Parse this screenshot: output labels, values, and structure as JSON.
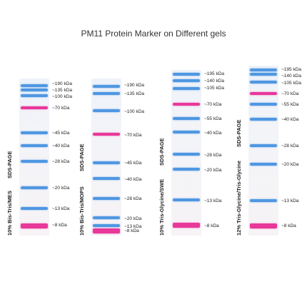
{
  "title": "PM11 Protein Marker on Different gels",
  "colors": {
    "blue_band": "#4f97e2",
    "pink_band": "#e8389a"
  },
  "gels": [
    {
      "gel_label": "10% Bis-Tris/MES",
      "method_label": "SDS-PAGE",
      "bands": [
        {
          "label": "~190 kDa",
          "color": "blue"
        },
        {
          "label": "~135 kDa",
          "color": "blue"
        },
        {
          "label": "~100 kDa",
          "color": "blue"
        },
        {
          "label": "~70 kDa",
          "color": "pink"
        },
        {
          "label": "~45 kDa",
          "color": "blue"
        },
        {
          "label": "~40 kDa",
          "color": "blue"
        },
        {
          "label": "~28 kDa",
          "color": "blue"
        },
        {
          "label": "~20 kDa",
          "color": "blue"
        },
        {
          "label": "~13 kDa",
          "color": "blue"
        },
        {
          "label": "~8 kDa",
          "color": "pink"
        }
      ]
    },
    {
      "gel_label": "10% Bis-Tris/MOPS",
      "method_label": "SDS-PAGE",
      "bands": [
        {
          "label": "~190 kDa",
          "color": "blue"
        },
        {
          "label": "~135 kDa",
          "color": "blue"
        },
        {
          "label": "~100 kDa",
          "color": "blue"
        },
        {
          "label": "~70 kDa",
          "color": "pink"
        },
        {
          "label": "~45 kDa",
          "color": "blue"
        },
        {
          "label": "~40 kDa",
          "color": "blue"
        },
        {
          "label": "~28 kDa",
          "color": "blue"
        },
        {
          "label": "~20 kDa",
          "color": "blue"
        },
        {
          "label": "~13 kDa",
          "color": "blue"
        },
        {
          "label": "~8 kDa",
          "color": "pink"
        }
      ]
    },
    {
      "gel_label": "10% Tris-Glycine/SWE",
      "method_label": "SDS-PAGE",
      "bands": [
        {
          "label": "~195 kDa",
          "color": "blue"
        },
        {
          "label": "~140 kDa",
          "color": "blue"
        },
        {
          "label": "~105 kDa",
          "color": "blue"
        },
        {
          "label": "~70 kDa",
          "color": "pink"
        },
        {
          "label": "~55 kDa",
          "color": "blue"
        },
        {
          "label": "~40 kDa",
          "color": "blue"
        },
        {
          "label": "~28 kDa",
          "color": "blue"
        },
        {
          "label": "~20 kDa",
          "color": "blue"
        },
        {
          "label": "~13 kDa",
          "color": "blue"
        },
        {
          "label": "~8 kDa",
          "color": "pink"
        }
      ]
    },
    {
      "gel_label": "12% Tris-Glycine/Tris-Glycine",
      "method_label": "SDS-PAGE",
      "bands": [
        {
          "label": "~195 kDa",
          "color": "blue"
        },
        {
          "label": "~140 kDa",
          "color": "blue"
        },
        {
          "label": "~105 kDa",
          "color": "blue"
        },
        {
          "label": "~70 kDa",
          "color": "pink"
        },
        {
          "label": "~55 kDa",
          "color": "blue"
        },
        {
          "label": "~40 kDa",
          "color": "blue"
        },
        {
          "label": "~28 kDa",
          "color": "blue"
        },
        {
          "label": "~20 kDa",
          "color": "blue"
        },
        {
          "label": "~13 kDa",
          "color": "blue"
        },
        {
          "label": "~8 kDa",
          "color": "pink"
        }
      ]
    }
  ]
}
